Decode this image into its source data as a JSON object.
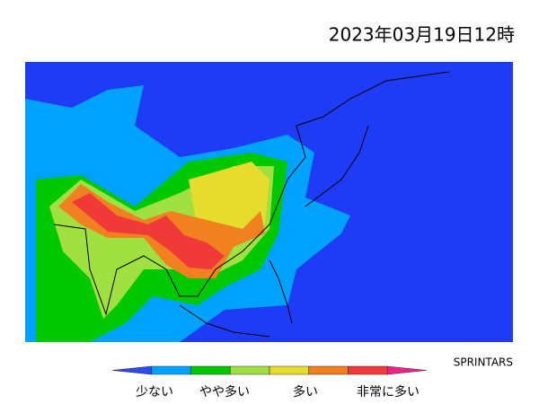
{
  "header": {
    "title": "2023年03月19日12時"
  },
  "credit": "SPRINTARS",
  "legend": {
    "labels": [
      "少ない",
      "やや多い",
      "多い",
      "非常に多い"
    ],
    "colors": [
      "#2b4cf2",
      "#00a2ff",
      "#00c800",
      "#a0e040",
      "#e6dc2e",
      "#f08020",
      "#f03a3a",
      "#f0208c"
    ]
  }
}
